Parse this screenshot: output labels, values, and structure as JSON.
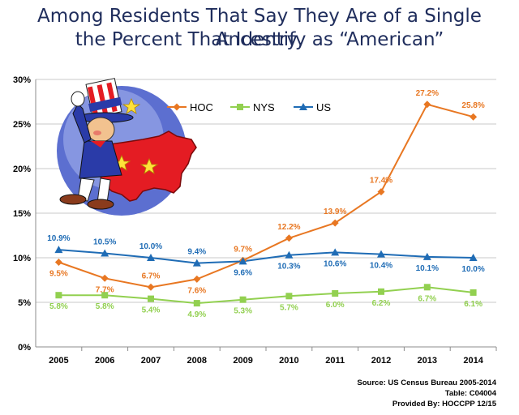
{
  "title_line1": "Among Residents That Say They Are of a Single Ancestry,",
  "title_line2": "the Percent That Identify as “American”",
  "source_lines": [
    "Source: US Census Bureau 2005-2014",
    "Table: C04004",
    "Provided By: HOCCPP 12/15"
  ],
  "illustration": "uncle-sam-holding-us-map-illustration",
  "chart_data": {
    "type": "line",
    "x": [
      "2005",
      "2006",
      "2007",
      "2008",
      "2009",
      "2010",
      "2011",
      "2012",
      "2013",
      "2014"
    ],
    "yticks": [
      "0%",
      "5%",
      "10%",
      "15%",
      "20%",
      "25%",
      "30%"
    ],
    "ylim": [
      0,
      30
    ],
    "grid": true,
    "legend_position": "top-left",
    "series": [
      {
        "name": "HOC",
        "color": "#e87722",
        "marker": "diamond",
        "values": [
          9.5,
          7.7,
          6.7,
          7.6,
          9.7,
          12.2,
          13.9,
          17.4,
          27.2,
          25.8
        ],
        "labels": [
          "9.5%",
          "7.7%",
          "6.7%",
          "7.6%",
          "9.7%",
          "12.2%",
          "13.9%",
          "17.4%",
          "27.2%",
          "25.8%"
        ]
      },
      {
        "name": "NYS",
        "color": "#92d050",
        "marker": "square",
        "values": [
          5.8,
          5.8,
          5.4,
          4.9,
          5.3,
          5.7,
          6.0,
          6.2,
          6.7,
          6.1
        ],
        "labels": [
          "5.8%",
          "5.8%",
          "5.4%",
          "4.9%",
          "5.3%",
          "5.7%",
          "6.0%",
          "6.2%",
          "6.7%",
          "6.1%"
        ]
      },
      {
        "name": "US",
        "color": "#1f6cb5",
        "marker": "triangle",
        "values": [
          10.9,
          10.5,
          10.0,
          9.4,
          9.6,
          10.3,
          10.6,
          10.4,
          10.1,
          10.0
        ],
        "labels": [
          "10.9%",
          "10.5%",
          "10.0%",
          "9.4%",
          "9.6%",
          "10.3%",
          "10.6%",
          "10.4%",
          "10.1%",
          "10.0%"
        ]
      }
    ]
  }
}
